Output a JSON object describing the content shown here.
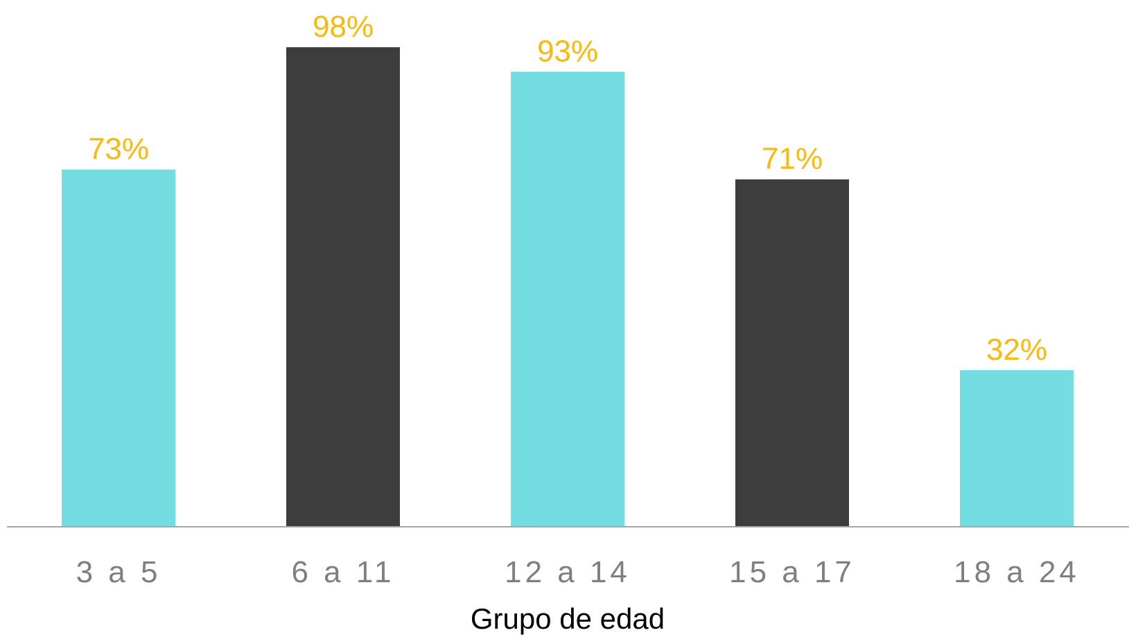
{
  "chart_data": {
    "type": "bar",
    "categories": [
      "3 a 5",
      "6 a 11",
      "12 a 14",
      "15 a 17",
      "18 a 24"
    ],
    "values": [
      73,
      98,
      93,
      71,
      32
    ],
    "value_labels": [
      "73%",
      "98%",
      "93%",
      "71%",
      "32%"
    ],
    "bar_colors": [
      "#73dde2",
      "#3d3d3d",
      "#73dde2",
      "#3d3d3d",
      "#73dde2"
    ],
    "title": "",
    "xlabel": "Grupo de edad",
    "ylabel": "",
    "ylim": [
      0,
      100
    ],
    "grid": false,
    "legend": "none"
  },
  "colors": {
    "value_label": "#fbb80f",
    "tick_label": "#7f7f7f",
    "axis_title": "#000000",
    "axis_line": "#a6a6a6",
    "background": "#ffffff"
  }
}
